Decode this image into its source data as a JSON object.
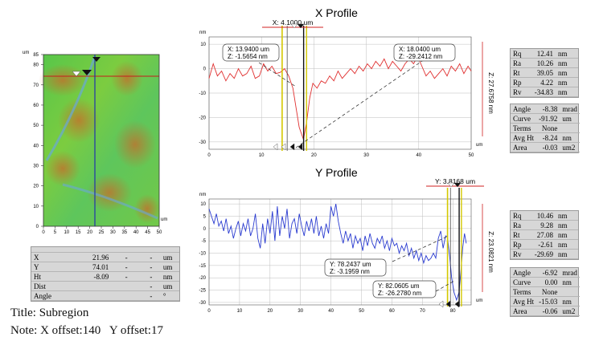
{
  "image_panel": {
    "y_unit": "um",
    "x_unit": "um",
    "y_ticks": [
      "85",
      "80",
      "70",
      "60",
      "50",
      "40",
      "30",
      "20",
      "10",
      "0"
    ],
    "x_ticks": [
      "0",
      "5",
      "10",
      "15",
      "20",
      "25",
      "30",
      "35",
      "40",
      "45",
      "50"
    ]
  },
  "measurements": {
    "rows": [
      {
        "label": "X",
        "value": "21.96",
        "mid": "-",
        "dash": "-",
        "unit": "um"
      },
      {
        "label": "Y",
        "value": "74.01",
        "mid": "-",
        "dash": "-",
        "unit": "um"
      },
      {
        "label": "Ht",
        "value": "-8.09",
        "mid": "-",
        "dash": "-",
        "unit": "nm"
      },
      {
        "label": "Dist",
        "value": "",
        "mid": "",
        "dash": "-",
        "unit": "um"
      },
      {
        "label": "Angle",
        "value": "",
        "mid": "",
        "dash": "-",
        "unit": "°"
      }
    ]
  },
  "footer": {
    "title": "Title: Subregion",
    "note": "Note: X offset:140   Y offset:17"
  },
  "x_profile": {
    "title": "X Profile",
    "cursor_label": "X: 4.1000 um",
    "y_unit": "nm",
    "x_unit": "um",
    "z_label": "Z: 27.6758 nm",
    "y_ticks": [
      "10",
      "0",
      "-10",
      "-20",
      "-30"
    ],
    "x_ticks": [
      "0",
      "10",
      "20",
      "30",
      "40",
      "50"
    ],
    "callout_a": [
      "X: 13.9400 um",
      "Z: -1.5654 nm"
    ],
    "callout_b": [
      "X: 18.0400 um",
      "Z: -29.2412 nm"
    ],
    "stats1": [
      {
        "k": "Rq",
        "v": "12.41",
        "u": "nm"
      },
      {
        "k": "Ra",
        "v": "10.26",
        "u": "nm"
      },
      {
        "k": "Rt",
        "v": "39.05",
        "u": "nm"
      },
      {
        "k": "Rp",
        "v": "4.22",
        "u": "nm"
      },
      {
        "k": "Rv",
        "v": "-34.83",
        "u": "nm"
      }
    ],
    "stats2": [
      {
        "k": "Angle",
        "v": "-8.38",
        "u": "mrad"
      },
      {
        "k": "Curve",
        "v": "-91.92",
        "u": "um"
      },
      {
        "k": "Terms",
        "v": "None",
        "u": ""
      },
      {
        "k": "Avg Ht",
        "v": "-8.24",
        "u": "nm"
      },
      {
        "k": "Area",
        "v": "-0.03",
        "u": "um2"
      }
    ]
  },
  "y_profile": {
    "title": "Y Profile",
    "cursor_label": "Y: 3.8168 um",
    "y_unit": "nm",
    "x_unit": "um",
    "z_label": "Z: 23.0821 nm",
    "y_ticks": [
      "10",
      "5",
      "0",
      "-5",
      "-10",
      "-15",
      "-20",
      "-25",
      "-30"
    ],
    "x_ticks": [
      "0",
      "10",
      "20",
      "30",
      "40",
      "50",
      "60",
      "70",
      "80"
    ],
    "callout_a": [
      "Y: 78.2437 um",
      "Z: -3.1959 nm"
    ],
    "callout_b": [
      "Y: 82.0605 um",
      "Z: -26.2780 nm"
    ],
    "stats1": [
      {
        "k": "Rq",
        "v": "10.46",
        "u": "nm"
      },
      {
        "k": "Ra",
        "v": "9.28",
        "u": "nm"
      },
      {
        "k": "Rt",
        "v": "27.08",
        "u": "nm"
      },
      {
        "k": "Rp",
        "v": "-2.61",
        "u": "nm"
      },
      {
        "k": "Rv",
        "v": "-29.69",
        "u": "nm"
      }
    ],
    "stats2": [
      {
        "k": "Angle",
        "v": "-6.92",
        "u": "mrad"
      },
      {
        "k": "Curve",
        "v": "0.00",
        "u": "nm"
      },
      {
        "k": "Terms",
        "v": "None",
        "u": ""
      },
      {
        "k": "Avg Ht",
        "v": "-15.03",
        "u": "nm"
      },
      {
        "k": "Area",
        "v": "-0.06",
        "u": "um2"
      }
    ]
  },
  "colors": {
    "x_trace": "#e03030",
    "y_trace": "#2a3bd0",
    "cursor": "#d4c800",
    "grid": "#bdbdbd"
  }
}
